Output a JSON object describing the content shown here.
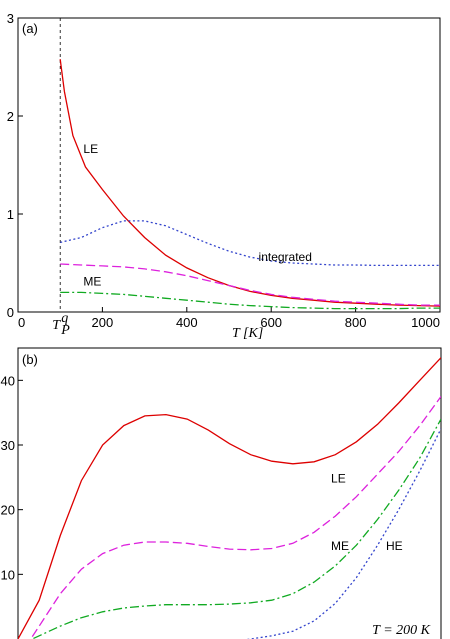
{
  "chart_data": [
    {
      "type": "line",
      "panel_label": "(a)",
      "xlabel": "T [K]",
      "ylabel": "",
      "xlim": [
        0,
        1000
      ],
      "ylim": [
        0,
        3
      ],
      "x_ticks": [
        "0",
        "200",
        "400",
        "600",
        "800",
        "1000"
      ],
      "x_tick_values": [
        0,
        200,
        400,
        600,
        800,
        1000
      ],
      "y_ticks": [
        "0",
        "1",
        "2",
        "3"
      ],
      "y_tick_values": [
        0,
        1,
        2,
        3
      ],
      "extra_x_tick": {
        "label": "T",
        "superscript": "q",
        "subscript": "P",
        "value": 100
      },
      "vline": {
        "x": 100,
        "style": "dashed"
      },
      "grid": false,
      "series": [
        {
          "name": "LE",
          "color": "#dd0000",
          "style": "solid",
          "x": [
            100,
            110,
            130,
            160,
            200,
            250,
            300,
            350,
            400,
            450,
            500,
            550,
            600,
            650,
            700,
            750,
            800,
            850,
            900,
            950,
            1000
          ],
          "y": [
            2.58,
            2.25,
            1.8,
            1.48,
            1.25,
            0.98,
            0.76,
            0.58,
            0.45,
            0.35,
            0.27,
            0.21,
            0.17,
            0.14,
            0.12,
            0.1,
            0.09,
            0.08,
            0.07,
            0.065,
            0.06
          ]
        },
        {
          "name": "integrated",
          "color": "#3344cc",
          "style": "dotted",
          "x": [
            100,
            150,
            200,
            250,
            300,
            350,
            400,
            450,
            500,
            550,
            600,
            650,
            700,
            750,
            800,
            850,
            900,
            950,
            1000
          ],
          "y": [
            0.71,
            0.76,
            0.86,
            0.93,
            0.93,
            0.88,
            0.79,
            0.7,
            0.62,
            0.56,
            0.52,
            0.5,
            0.49,
            0.48,
            0.48,
            0.475,
            0.475,
            0.475,
            0.475
          ]
        },
        {
          "name": "ME",
          "color": "#dd22dd",
          "style": "dashed",
          "x": [
            100,
            150,
            200,
            250,
            300,
            350,
            400,
            450,
            500,
            550,
            600,
            650,
            700,
            750,
            800,
            850,
            900,
            950,
            1000
          ],
          "y": [
            0.49,
            0.48,
            0.47,
            0.46,
            0.44,
            0.41,
            0.37,
            0.32,
            0.27,
            0.22,
            0.18,
            0.15,
            0.13,
            0.11,
            0.1,
            0.09,
            0.08,
            0.07,
            0.07
          ]
        },
        {
          "name": "",
          "color": "#11aa22",
          "style": "dashdot",
          "x": [
            100,
            150,
            200,
            250,
            300,
            350,
            400,
            450,
            500,
            550,
            600,
            650,
            700,
            750,
            800,
            850,
            900,
            950,
            1000
          ],
          "y": [
            0.2,
            0.2,
            0.19,
            0.18,
            0.16,
            0.14,
            0.12,
            0.1,
            0.08,
            0.065,
            0.055,
            0.045,
            0.04,
            0.035,
            0.035,
            0.035,
            0.035,
            0.04,
            0.04
          ]
        }
      ],
      "annotations": [
        {
          "text": "LE",
          "x": 155,
          "y": 1.62
        },
        {
          "text": "integrated",
          "x": 570,
          "y": 0.52
        },
        {
          "text": "ME",
          "x": 155,
          "y": 0.27
        }
      ]
    },
    {
      "type": "line",
      "panel_label": "(b)",
      "xlabel": "",
      "ylabel": "",
      "xlim": [
        0,
        1
      ],
      "ylim": [
        0,
        45
      ],
      "y_ticks": [
        "10",
        "20",
        "30",
        "40"
      ],
      "y_tick_values": [
        10,
        20,
        30,
        40
      ],
      "grid": false,
      "series": [
        {
          "name": "LE",
          "color": "#dd0000",
          "style": "solid",
          "x": [
            0.0,
            0.05,
            0.1,
            0.15,
            0.2,
            0.25,
            0.3,
            0.35,
            0.4,
            0.45,
            0.5,
            0.55,
            0.6,
            0.65,
            0.7,
            0.75,
            0.8,
            0.85,
            0.9,
            0.95,
            1.0
          ],
          "y": [
            0.0,
            6.0,
            16.0,
            24.5,
            30.0,
            33.0,
            34.5,
            34.7,
            34.0,
            32.3,
            30.2,
            28.5,
            27.5,
            27.1,
            27.4,
            28.5,
            30.5,
            33.2,
            36.5,
            40.0,
            43.5
          ]
        },
        {
          "name": "ME",
          "color": "#dd22dd",
          "style": "dashed",
          "x": [
            0.0,
            0.05,
            0.1,
            0.15,
            0.2,
            0.25,
            0.3,
            0.35,
            0.4,
            0.45,
            0.5,
            0.55,
            0.6,
            0.65,
            0.7,
            0.75,
            0.8,
            0.85,
            0.9,
            0.95,
            1.0
          ],
          "y": [
            -3.0,
            2.0,
            7.0,
            10.8,
            13.2,
            14.5,
            15.0,
            15.0,
            14.8,
            14.3,
            13.9,
            13.8,
            14.0,
            14.8,
            16.5,
            19.0,
            22.0,
            25.5,
            29.0,
            33.0,
            37.5
          ]
        },
        {
          "name": "",
          "color": "#11aa22",
          "style": "dashdot",
          "x": [
            0.0,
            0.05,
            0.1,
            0.15,
            0.2,
            0.25,
            0.3,
            0.35,
            0.4,
            0.45,
            0.5,
            0.55,
            0.6,
            0.65,
            0.7,
            0.75,
            0.8,
            0.85,
            0.9,
            0.95,
            1.0
          ],
          "y": [
            -1.0,
            0.5,
            2.0,
            3.3,
            4.2,
            4.8,
            5.1,
            5.3,
            5.3,
            5.3,
            5.4,
            5.6,
            6.0,
            7.0,
            8.8,
            11.3,
            14.5,
            18.5,
            23.0,
            28.0,
            34.0
          ]
        },
        {
          "name": "HE",
          "color": "#3344cc",
          "style": "dotted",
          "x": [
            0.5,
            0.55,
            0.6,
            0.65,
            0.7,
            0.75,
            0.8,
            0.85,
            0.9,
            0.95,
            1.0
          ],
          "y": [
            -0.5,
            0.0,
            0.5,
            1.2,
            2.8,
            5.5,
            9.5,
            14.5,
            20.0,
            26.0,
            32.5
          ]
        }
      ],
      "annotations": [
        {
          "text": "LE",
          "x": 0.74,
          "y": 24.2
        },
        {
          "text": "ME",
          "x": 0.74,
          "y": 13.8
        },
        {
          "text": "HE",
          "x": 0.87,
          "y": 13.8
        }
      ],
      "corner_text": "T = 200 K"
    }
  ]
}
